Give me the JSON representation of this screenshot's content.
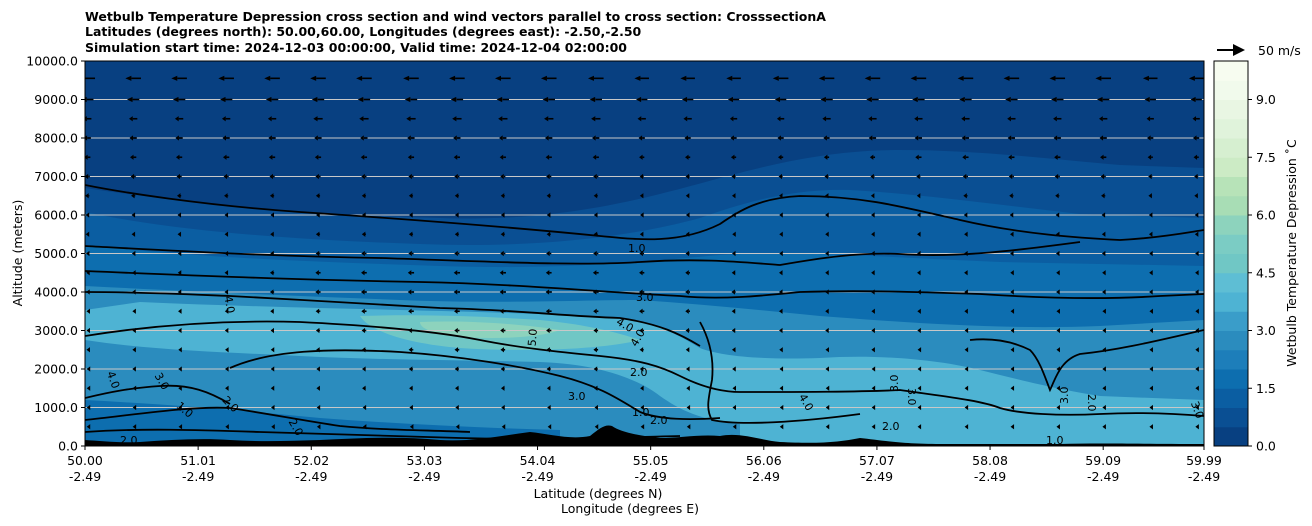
{
  "chart_data": {
    "type": "heatmap",
    "title_lines": [
      "Wetbulb Temperature Depression cross section and wind vectors parallel to cross section: CrosssectionA",
      "Latitudes (degrees north): 50.00,60.00, Longitudes (degrees east): -2.50,-2.50",
      "Simulation start time: 2024-12-03 00:00:00, Valid time: 2024-12-04 02:00:00"
    ],
    "xlabel_lines": [
      "Latitude (degrees N)",
      "Longitude (degrees E)"
    ],
    "ylabel": "Altitude (meters)",
    "x_ticks": [
      {
        "lat": "50.00",
        "lon": "-2.49",
        "value": 50.0
      },
      {
        "lat": "51.01",
        "lon": "-2.49",
        "value": 51.01
      },
      {
        "lat": "52.02",
        "lon": "-2.49",
        "value": 52.02
      },
      {
        "lat": "53.03",
        "lon": "-2.49",
        "value": 53.03
      },
      {
        "lat": "54.04",
        "lon": "-2.49",
        "value": 54.04
      },
      {
        "lat": "55.05",
        "lon": "-2.49",
        "value": 55.05
      },
      {
        "lat": "56.06",
        "lon": "-2.49",
        "value": 56.06
      },
      {
        "lat": "57.07",
        "lon": "-2.49",
        "value": 57.07
      },
      {
        "lat": "58.08",
        "lon": "-2.49",
        "value": 58.08
      },
      {
        "lat": "59.09",
        "lon": "-2.49",
        "value": 59.09
      },
      {
        "lat": "59.99",
        "lon": "-2.49",
        "value": 59.99
      }
    ],
    "y_ticks": [
      "0.0",
      "1000.0",
      "2000.0",
      "3000.0",
      "4000.0",
      "5000.0",
      "6000.0",
      "7000.0",
      "8000.0",
      "9000.0",
      "10000.0"
    ],
    "xlim": [
      50.0,
      59.99
    ],
    "ylim": [
      0,
      10000
    ],
    "grid": "horizontal",
    "colorbar": {
      "label": "Wetbulb Temperature Depression ˚C",
      "ticks": [
        "0.0",
        "1.5",
        "3.0",
        "4.5",
        "6.0",
        "7.5",
        "9.0"
      ],
      "range": [
        0,
        10
      ],
      "levels": 20,
      "colors": [
        "#084081",
        "#0a4f93",
        "#0b5ea2",
        "#0d6eaf",
        "#1d7eba",
        "#2b8cbe",
        "#3a9dc9",
        "#4eb3d3",
        "#5ebed4",
        "#70c7c5",
        "#7bccc4",
        "#8dd3bd",
        "#a8ddb5",
        "#b7e3b8",
        "#ccebc5",
        "#d6efd0",
        "#e0f3db",
        "#e9f6e3",
        "#f1faec",
        "#f7fcf0"
      ]
    },
    "wind_key": {
      "label": "50 m/s",
      "speed": 50
    },
    "contours": [
      {
        "level": 1.0,
        "labels": [
          "1.0",
          "1.0",
          "1.0",
          "1.0"
        ]
      },
      {
        "level": 2.0,
        "labels": [
          "2.0",
          "2.0",
          "2.0",
          "2.0",
          "2.0",
          "2.0",
          "2.0"
        ]
      },
      {
        "level": 3.0,
        "labels": [
          "3.0",
          "3.0",
          "3.0",
          "3.0",
          "3.0",
          "3.0",
          "3.0"
        ]
      },
      {
        "level": 4.0,
        "labels": [
          "4.0",
          "4.0",
          "4.0",
          "4.0",
          "4.0"
        ]
      },
      {
        "level": 5.0,
        "labels": [
          "5.0"
        ]
      }
    ],
    "wind_columns_lat": [
      50.02,
      50.43,
      50.84,
      51.26,
      51.67,
      52.08,
      52.49,
      52.91,
      53.32,
      53.73,
      54.14,
      54.56,
      54.97,
      55.38,
      55.79,
      56.21,
      56.62,
      57.03,
      57.44,
      57.86,
      58.27,
      58.68,
      59.09,
      59.51,
      59.92
    ],
    "wind_levels_m": [
      9550,
      9000,
      8500,
      8000,
      7500,
      7000,
      6500,
      6000,
      5500,
      5000,
      4500,
      4000,
      3500,
      3000,
      2500,
      2000,
      1500,
      1000,
      500
    ],
    "wind_u_ms": [
      [
        -30,
        -30,
        -30,
        -30,
        -30,
        -30,
        -30,
        -30,
        -30,
        -30,
        -30,
        -30,
        -28,
        -28,
        -28,
        -30,
        -30,
        -30,
        -30,
        -30,
        -30,
        -30,
        -30,
        -28,
        -28
      ],
      [
        -24,
        -24,
        -24,
        -24,
        -24,
        -24,
        -24,
        -24,
        -24,
        -24,
        -24,
        -24,
        -22,
        -22,
        -22,
        -22,
        -24,
        -24,
        -24,
        -24,
        -24,
        -24,
        -24,
        -22,
        -22
      ],
      [
        -16,
        -16,
        -16,
        -16,
        -16,
        -18,
        -18,
        -18,
        -18,
        -18,
        -18,
        -18,
        -16,
        -16,
        -14,
        -14,
        -16,
        -16,
        -16,
        -16,
        -16,
        -16,
        -16,
        -14,
        -14
      ],
      [
        -14,
        -14,
        -14,
        -14,
        -14,
        -14,
        -14,
        -14,
        -14,
        -14,
        -14,
        -14,
        -12,
        -12,
        -12,
        -12,
        -12,
        -14,
        -14,
        -14,
        -14,
        -14,
        -14,
        -12,
        -12
      ],
      [
        -12,
        -12,
        -12,
        -12,
        -12,
        -12,
        -12,
        -12,
        -12,
        -12,
        -12,
        -12,
        -10,
        -10,
        -10,
        -10,
        -10,
        -10,
        -12,
        -12,
        -12,
        -12,
        -12,
        -10,
        -10
      ],
      [
        -10,
        -10,
        -10,
        -10,
        -10,
        -10,
        -10,
        -10,
        -10,
        -10,
        -10,
        -10,
        -8,
        -8,
        -8,
        -8,
        -8,
        -8,
        -8,
        -10,
        -10,
        -10,
        -10,
        -8,
        -8
      ],
      [
        -8,
        -8,
        -8,
        -8,
        -8,
        -8,
        -8,
        -8,
        -8,
        -8,
        -8,
        -8,
        -7,
        -7,
        -6,
        -6,
        -6,
        -6,
        -6,
        -8,
        -8,
        -8,
        -8,
        -7,
        -7
      ],
      [
        -6,
        -6,
        -6,
        -6,
        -6,
        -7,
        -7,
        -7,
        -7,
        -7,
        -7,
        -7,
        -6,
        -6,
        -5,
        -5,
        -5,
        -5,
        -5,
        -6,
        -6,
        -6,
        -6,
        -5,
        -5
      ],
      [
        -6,
        -6,
        -6,
        -6,
        -7,
        -8,
        -8,
        -8,
        -8,
        -8,
        -8,
        -8,
        -7,
        -7,
        -5,
        -5,
        -5,
        -5,
        -5,
        -5,
        -5,
        -5,
        -5,
        -5,
        -5
      ],
      [
        -5,
        -5,
        -5,
        -6,
        -7,
        -9,
        -10,
        -10,
        -10,
        -10,
        -10,
        -10,
        -9,
        -8,
        -6,
        -5,
        -5,
        -5,
        -5,
        -5,
        -5,
        -5,
        -5,
        -4,
        -4
      ],
      [
        -4,
        -4,
        -5,
        -6,
        -8,
        -10,
        -11,
        -12,
        -12,
        -12,
        -11,
        -11,
        -10,
        -9,
        -7,
        -6,
        -5,
        -5,
        -5,
        -5,
        -4,
        -4,
        -4,
        -4,
        -4
      ],
      [
        -4,
        -4,
        -5,
        -6,
        -8,
        -10,
        -11,
        -12,
        -12,
        -12,
        -12,
        -11,
        -10,
        -9,
        -8,
        -6,
        -5,
        -5,
        -4,
        -4,
        -4,
        -4,
        -4,
        -4,
        -4
      ],
      [
        -3,
        -3,
        -4,
        -5,
        -7,
        -9,
        -10,
        -11,
        -11,
        -11,
        -11,
        -10,
        -10,
        -9,
        -7,
        -6,
        -5,
        -4,
        -4,
        -4,
        -3,
        -3,
        -3,
        -3,
        -3
      ],
      [
        -3,
        -3,
        -4,
        -5,
        -6,
        -8,
        -9,
        -10,
        -10,
        -10,
        -10,
        -9,
        -9,
        -8,
        -7,
        -6,
        -5,
        -4,
        -4,
        -3,
        -3,
        -3,
        -3,
        -3,
        -3
      ],
      [
        -3,
        -3,
        -3,
        -4,
        -5,
        -7,
        -8,
        -9,
        -9,
        -9,
        -9,
        -9,
        -8,
        -7,
        -6,
        -5,
        -4,
        -4,
        -3,
        -3,
        -3,
        -3,
        -3,
        -3,
        -3
      ],
      [
        -2,
        -3,
        -3,
        -4,
        -5,
        -6,
        -7,
        -8,
        -8,
        -8,
        -8,
        -8,
        -7,
        -6,
        -5,
        -4,
        -4,
        -3,
        -3,
        -3,
        -3,
        -3,
        -3,
        -3,
        -3
      ],
      [
        -2,
        -2,
        -3,
        -4,
        -5,
        -6,
        -7,
        -7,
        -7,
        -7,
        -7,
        -7,
        -6,
        -5,
        -4,
        -4,
        -3,
        -3,
        -3,
        -3,
        -3,
        -3,
        -3,
        -3,
        -3
      ],
      [
        -2,
        -2,
        -3,
        -3,
        -4,
        -5,
        -5,
        -6,
        -6,
        -6,
        -6,
        -5,
        -5,
        -4,
        -4,
        -3,
        -3,
        -3,
        -3,
        -3,
        -3,
        -3,
        -3,
        -3,
        -3
      ],
      [
        -2,
        -2,
        -2,
        -3,
        -3,
        -4,
        -4,
        -4,
        -4,
        -4,
        -4,
        -4,
        -4,
        -3,
        -3,
        -3,
        -3,
        -3,
        -3,
        -3,
        -3,
        -3,
        -3,
        -3,
        -3
      ]
    ]
  }
}
